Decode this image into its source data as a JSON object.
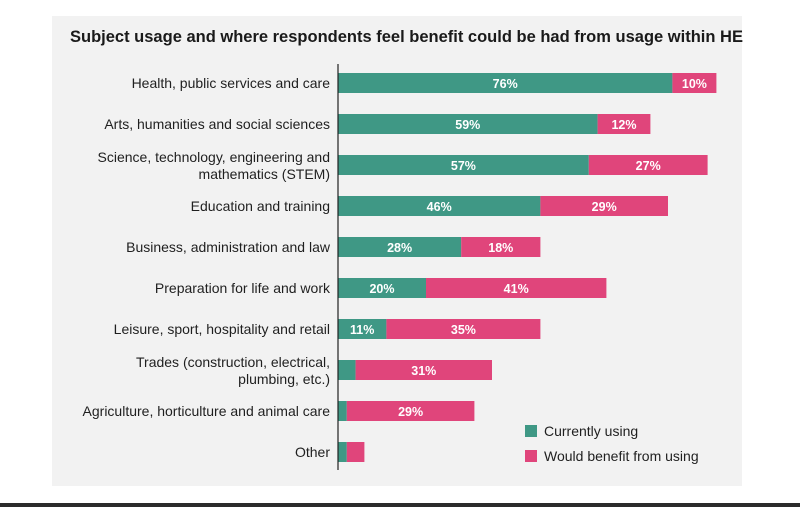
{
  "chart_data": {
    "type": "bar",
    "orientation": "horizontal",
    "stacked": true,
    "title": "Subject  usage and where respondents feel benefit could be had from usage within HE",
    "xlabel": "",
    "ylabel": "",
    "xlim": [
      0,
      100
    ],
    "grid": false,
    "legend_position": "bottom-right",
    "categories": [
      [
        "Health, public services and care"
      ],
      [
        "Arts, humanities and social sciences"
      ],
      [
        "Science, technology, engineering and",
        "mathematics (STEM)"
      ],
      [
        "Education and training"
      ],
      [
        "Business, administration and law"
      ],
      [
        "Preparation for life and work"
      ],
      [
        "Leisure, sport, hospitality and retail"
      ],
      [
        "Trades (construction, electrical,",
        "plumbing, etc.)"
      ],
      [
        "Agriculture, horticulture and animal care"
      ],
      [
        "Other"
      ]
    ],
    "series": [
      {
        "name": "Currently using",
        "color": "#3f9885",
        "values": [
          76,
          59,
          57,
          46,
          28,
          20,
          11,
          4,
          2,
          2
        ],
        "labels": [
          "76%",
          "59%",
          "57%",
          "46%",
          "28%",
          "20%",
          "11%",
          "",
          "",
          ""
        ]
      },
      {
        "name": "Would benefit from using",
        "color": "#e0457b",
        "values": [
          10,
          12,
          27,
          29,
          18,
          41,
          35,
          31,
          29,
          4
        ],
        "labels": [
          "10%",
          "12%",
          "27%",
          "29%",
          "18%",
          "41%",
          "35%",
          "31%",
          "29%",
          ""
        ]
      }
    ]
  }
}
